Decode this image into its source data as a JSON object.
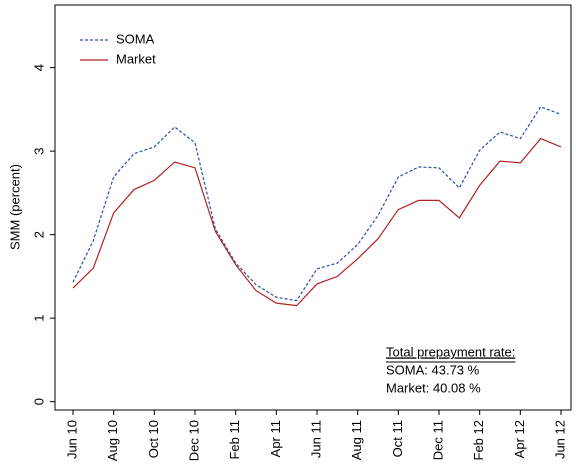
{
  "chart_data": {
    "type": "line",
    "y_label": "SMM (percent)",
    "categories": [
      "Jun 10",
      null,
      "Aug 10",
      null,
      "Oct 10",
      null,
      "Dec 10",
      null,
      "Feb 11",
      null,
      "Apr 11",
      null,
      "Jun 11",
      null,
      "Aug 11",
      null,
      "Oct 11",
      null,
      "Dec 11",
      null,
      "Feb 12",
      null,
      "Apr 12",
      null,
      "Jun 12"
    ],
    "series": [
      {
        "name": "SOMA",
        "color": "#2b4ea8",
        "dashed": true,
        "values": [
          1.43,
          1.93,
          2.69,
          2.97,
          3.05,
          3.29,
          3.1,
          2.07,
          1.66,
          1.4,
          1.25,
          1.21,
          1.59,
          1.66,
          1.88,
          2.23,
          2.69,
          2.81,
          2.8,
          2.56,
          3.01,
          3.23,
          3.15,
          3.53,
          3.44
        ]
      },
      {
        "name": "Market",
        "color": "#b22222",
        "dashed": false,
        "values": [
          1.36,
          1.6,
          2.26,
          2.54,
          2.65,
          2.87,
          2.8,
          2.04,
          1.64,
          1.33,
          1.18,
          1.15,
          1.41,
          1.5,
          1.71,
          1.95,
          2.3,
          2.41,
          2.41,
          2.2,
          2.59,
          2.88,
          2.86,
          3.15,
          3.05
        ]
      }
    ],
    "ylim": [
      -0.1,
      4.75
    ],
    "yticks": [
      0,
      1,
      2,
      3,
      4
    ],
    "grid": false,
    "legend": "top-left",
    "annotations": [
      "Total prepayment rate:",
      "SOMA:  43.73 %",
      "Market:  40.08 %"
    ]
  }
}
